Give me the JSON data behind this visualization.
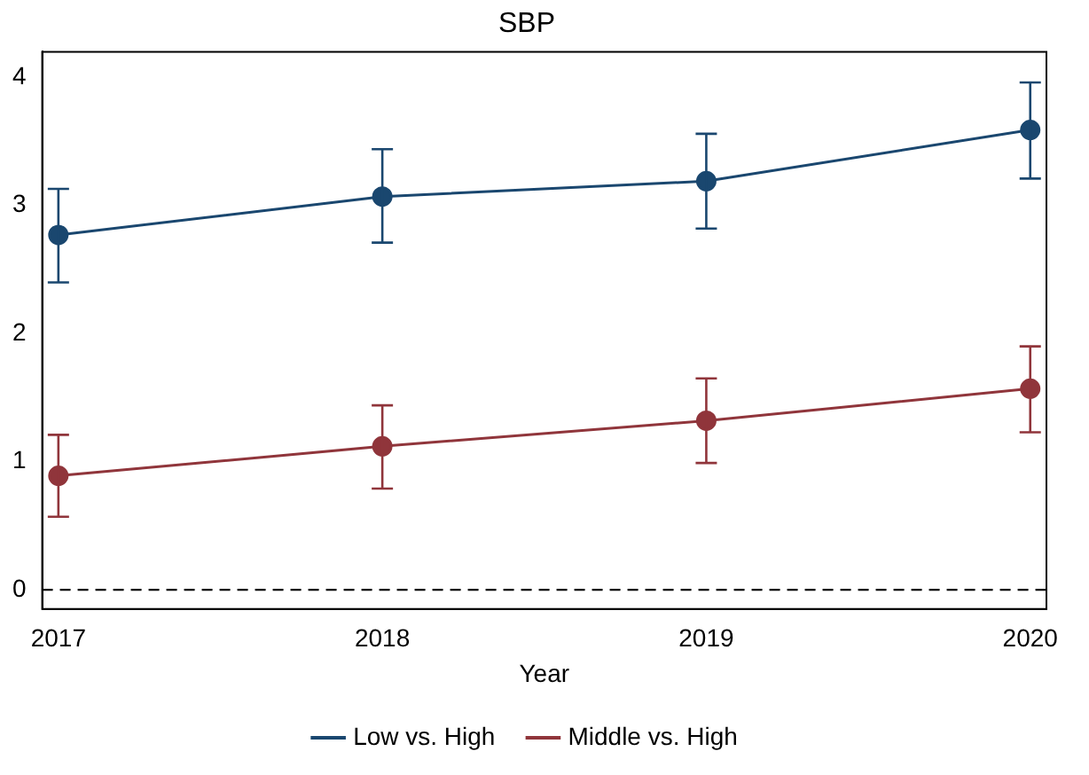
{
  "chart_data": {
    "type": "line",
    "title": "SBP",
    "xlabel": "Year",
    "x": [
      2017,
      2018,
      2019,
      2020
    ],
    "series": [
      {
        "name": "Low vs. High",
        "color": "#1a476f",
        "values": [
          2.77,
          3.07,
          3.19,
          3.59
        ],
        "errors": [
          [
            2.4,
            3.13
          ],
          [
            2.71,
            3.44
          ],
          [
            2.82,
            3.56
          ],
          [
            3.21,
            3.96
          ]
        ]
      },
      {
        "name": "Middle vs. High",
        "color": "#90353b",
        "values": [
          0.89,
          1.12,
          1.32,
          1.57
        ],
        "errors": [
          [
            0.57,
            1.21
          ],
          [
            0.79,
            1.44
          ],
          [
            0.99,
            1.65
          ],
          [
            1.23,
            1.9
          ]
        ]
      }
    ],
    "xlim": [
      2016.95,
      2020.05
    ],
    "xticks": [
      2017,
      2018,
      2019,
      2020
    ],
    "ylim": [
      -0.15,
      4.2
    ],
    "yticks": [
      0,
      1,
      2,
      3,
      4
    ],
    "ref_lines": [
      {
        "axis": "y",
        "value": 0,
        "color": "#000000",
        "line_style": "dashed"
      }
    ],
    "grid": false,
    "legend": "bottom",
    "marker": "circle",
    "line_style": "solid"
  }
}
